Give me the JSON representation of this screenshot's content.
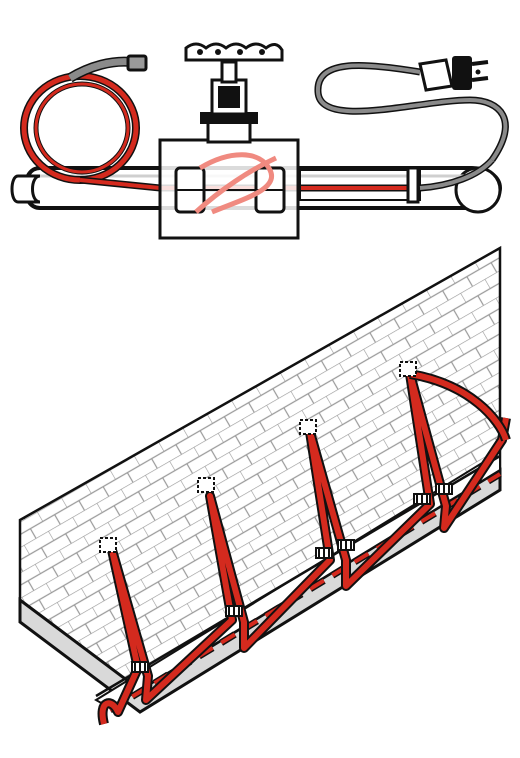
{
  "figure": {
    "panels": [
      {
        "id": "pipe-panel",
        "subject": "heat-cable-on-pipe-with-valve"
      },
      {
        "id": "roof-panel",
        "subject": "heat-cable-zigzag-on-roof-edge"
      }
    ],
    "colors": {
      "cable": "#d42a1e",
      "cable_light": "#f08a80",
      "plug_cord": "#8a8a8a",
      "outline": "#111111",
      "pipe_fill": "#ffffff",
      "shadow": "#cfcfcf"
    },
    "icons": [
      "valve-handwheel-icon",
      "electric-plug-icon",
      "cable-clip-icon",
      "shingle-clip-icon"
    ]
  }
}
